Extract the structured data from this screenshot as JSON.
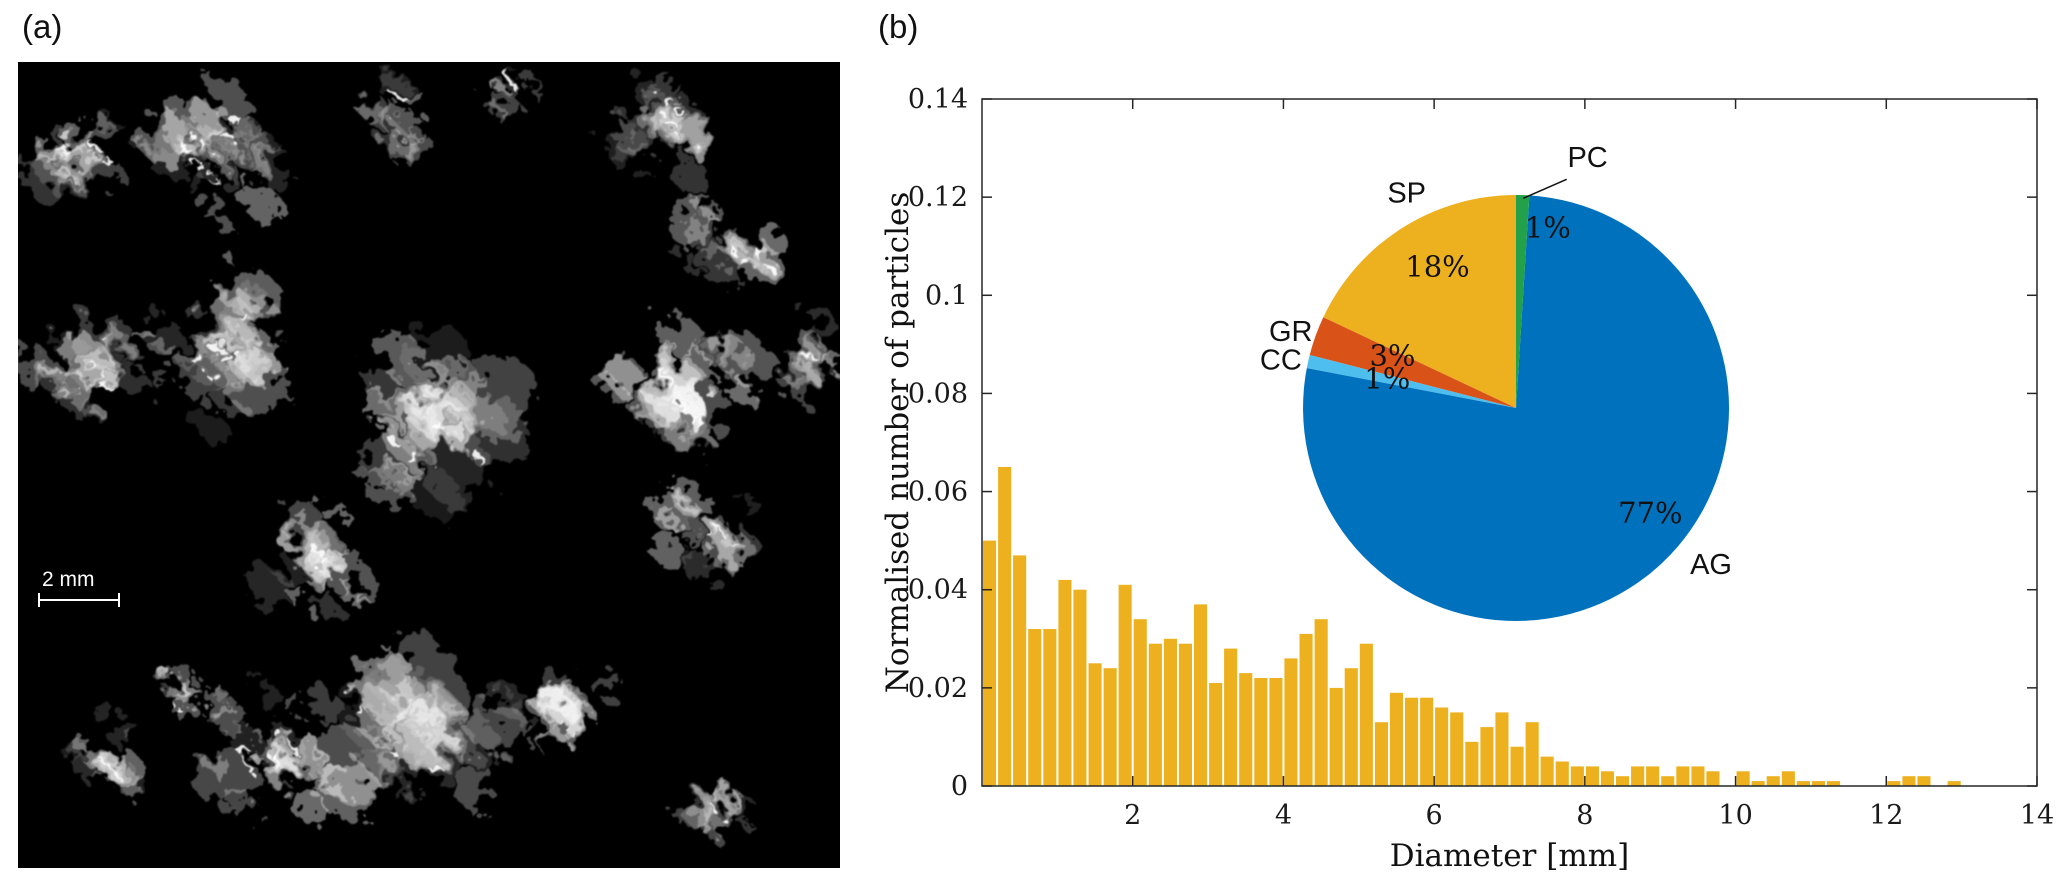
{
  "figure": {
    "panel_a_label": "(a)",
    "panel_b_label": "(b)",
    "scale_bar_label": "2 mm"
  },
  "chart_data": [
    {
      "type": "bar",
      "title": "",
      "xlabel": "Diameter [mm]",
      "ylabel": "Normalised number of particles",
      "xlim": [
        0,
        14
      ],
      "ylim": [
        0,
        0.14
      ],
      "x_ticks": [
        2,
        4,
        6,
        8,
        10,
        12,
        14
      ],
      "x_tick_labels": [
        "2",
        "4",
        "6",
        "8",
        "10",
        "12",
        "14"
      ],
      "y_ticks": [
        0,
        0.02,
        0.04,
        0.06,
        0.08,
        0.1,
        0.12,
        0.14
      ],
      "y_tick_labels": [
        "0",
        "0.02",
        "0.04",
        "0.06",
        "0.08",
        "0.1",
        "0.12",
        "0.14"
      ],
      "grid": false,
      "bar_color": "#EDB120",
      "bin_width": 0.2,
      "x": [
        0.1,
        0.3,
        0.5,
        0.7,
        0.9,
        1.1,
        1.3,
        1.5,
        1.7,
        1.9,
        2.1,
        2.3,
        2.5,
        2.7,
        2.9,
        3.1,
        3.3,
        3.5,
        3.7,
        3.9,
        4.1,
        4.3,
        4.5,
        4.7,
        4.9,
        5.1,
        5.3,
        5.5,
        5.7,
        5.9,
        6.1,
        6.3,
        6.5,
        6.7,
        6.9,
        7.1,
        7.3,
        7.5,
        7.7,
        7.9,
        8.1,
        8.3,
        8.5,
        8.7,
        8.9,
        9.1,
        9.3,
        9.5,
        9.7,
        9.9,
        10.1,
        10.3,
        10.5,
        10.7,
        10.9,
        11.1,
        11.3,
        11.5,
        11.7,
        11.9,
        12.1,
        12.3,
        12.5,
        12.7,
        12.9
      ],
      "values": [
        0.05,
        0.065,
        0.047,
        0.032,
        0.032,
        0.042,
        0.04,
        0.025,
        0.024,
        0.041,
        0.034,
        0.029,
        0.03,
        0.029,
        0.037,
        0.021,
        0.028,
        0.023,
        0.022,
        0.022,
        0.026,
        0.031,
        0.034,
        0.02,
        0.024,
        0.029,
        0.013,
        0.019,
        0.018,
        0.018,
        0.016,
        0.015,
        0.009,
        0.012,
        0.015,
        0.008,
        0.013,
        0.006,
        0.005,
        0.004,
        0.004,
        0.003,
        0.002,
        0.004,
        0.004,
        0.002,
        0.004,
        0.004,
        0.003,
        0,
        0.003,
        0.001,
        0.002,
        0.003,
        0.001,
        0.001,
        0.001,
        0,
        0,
        0,
        0.001,
        0.002,
        0.002,
        0,
        0.001
      ]
    },
    {
      "type": "pie",
      "start_angle_deg": 90,
      "direction": "ccw",
      "legend_position": "labels-on-slices",
      "slices": [
        {
          "name": "SP",
          "value": 18,
          "percent_label": "18%",
          "color": "#EDB120",
          "name_pos": {
            "angle": 117,
            "k": 1.13,
            "anchor": "middle"
          },
          "pct_pos": {
            "angle": 119,
            "k": 0.76
          }
        },
        {
          "name": "GR",
          "value": 3,
          "percent_label": "3%",
          "color": "#D95319",
          "name_pos": {
            "angle": 159.5,
            "k": 1.02,
            "anchor": "end"
          },
          "pct_pos": {
            "angle": 157,
            "k": 0.63
          }
        },
        {
          "name": "CC",
          "value": 1,
          "percent_label": "1%",
          "color": "#4DBEEE",
          "name_pos": {
            "angle": 167.5,
            "k": 1.03,
            "anchor": "end"
          },
          "pct_pos": {
            "angle": 167,
            "k": 0.62
          }
        },
        {
          "name": "AG",
          "value": 77,
          "percent_label": "77%",
          "color": "#0072BD",
          "name_pos": {
            "angle": 318,
            "k": 1.1,
            "anchor": "start"
          },
          "pct_pos": {
            "angle": 322,
            "k": 0.8
          }
        },
        {
          "name": "PC",
          "value": 1,
          "percent_label": "1%",
          "color": "#22A14A",
          "name_pos": {
            "angle": 74,
            "k": 1.22,
            "anchor": "middle"
          },
          "pct_pos": {
            "angle": 80,
            "k": 0.86
          },
          "leader": {
            "a0": 77.5,
            "k0": 1.1,
            "a1": 88,
            "k1": 0.985
          }
        }
      ]
    }
  ]
}
